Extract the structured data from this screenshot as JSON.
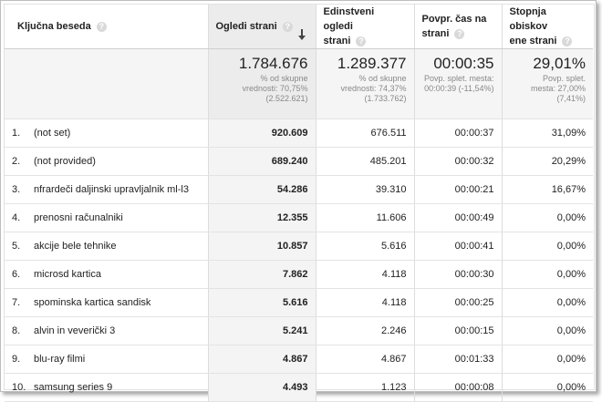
{
  "header": {
    "keyword": "Ključna beseda",
    "pageviews": "Ogledi strani",
    "unique_line1": "Edinstveni ogledi",
    "unique_line2": "strani",
    "time_line1": "Povpr. čas na",
    "time_line2": "strani",
    "bounce_line1": "Stopnja obiskov",
    "bounce_line2": "ene strani",
    "help_glyph": "?"
  },
  "summary": {
    "pageviews": {
      "value": "1.784.676",
      "sub1": "% od skupne",
      "sub2": "vrednosti: 70,75%",
      "sub3": "(2.522.621)"
    },
    "unique": {
      "value": "1.289.377",
      "sub1": "% od skupne",
      "sub2": "vrednosti: 74,37%",
      "sub3": "(1.733.762)"
    },
    "time": {
      "value": "00:00:35",
      "sub1": "Povp. splet. mesta:",
      "sub2": "00:00:39 (-11,54%)"
    },
    "bounce": {
      "value": "29,01%",
      "sub1": "Povp. splet.",
      "sub2": "mesta: 27,00%",
      "sub3": "(7,41%)"
    }
  },
  "rows": [
    {
      "idx": "1.",
      "keyword": "(not set)",
      "pageviews": "920.609",
      "unique": "676.511",
      "time": "00:00:37",
      "bounce": "31,09%"
    },
    {
      "idx": "2.",
      "keyword": "(not provided)",
      "pageviews": "689.240",
      "unique": "485.201",
      "time": "00:00:32",
      "bounce": "20,29%"
    },
    {
      "idx": "3.",
      "keyword": "nfrardeči daljinski upravljalnik ml-l3",
      "pageviews": "54.286",
      "unique": "39.310",
      "time": "00:00:21",
      "bounce": "16,67%"
    },
    {
      "idx": "4.",
      "keyword": "prenosni računalniki",
      "pageviews": "12.355",
      "unique": "11.606",
      "time": "00:00:49",
      "bounce": "0,00%"
    },
    {
      "idx": "5.",
      "keyword": "akcije bele tehnike",
      "pageviews": "10.857",
      "unique": "5.616",
      "time": "00:00:41",
      "bounce": "0,00%"
    },
    {
      "idx": "6.",
      "keyword": "microsd kartica",
      "pageviews": "7.862",
      "unique": "4.118",
      "time": "00:00:30",
      "bounce": "0,00%"
    },
    {
      "idx": "7.",
      "keyword": "spominska kartica sandisk",
      "pageviews": "5.616",
      "unique": "4.118",
      "time": "00:00:25",
      "bounce": "0,00%"
    },
    {
      "idx": "8.",
      "keyword": "alvin in veverički 3",
      "pageviews": "5.241",
      "unique": "2.246",
      "time": "00:00:15",
      "bounce": "0,00%"
    },
    {
      "idx": "9.",
      "keyword": "blu-ray filmi",
      "pageviews": "4.867",
      "unique": "4.867",
      "time": "00:01:33",
      "bounce": "0,00%"
    },
    {
      "idx": "10.",
      "keyword": "samsung series 9",
      "pageviews": "4.493",
      "unique": "1.123",
      "time": "00:00:08",
      "bounce": "0,00%"
    }
  ]
}
